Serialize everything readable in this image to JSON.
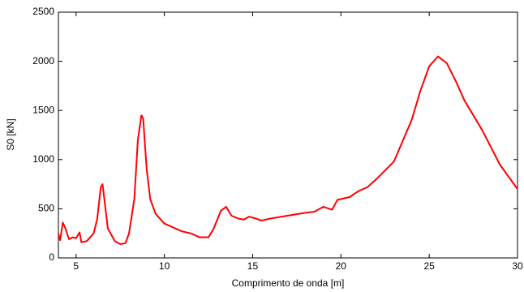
{
  "chart_data": {
    "type": "line",
    "x_label": "Comprimento de onda [m]",
    "y_label": "S0 [kN]",
    "x": [
      4.0,
      4.1,
      4.25,
      4.4,
      4.6,
      4.8,
      5.0,
      5.2,
      5.3,
      5.6,
      6.0,
      6.2,
      6.4,
      6.5,
      6.6,
      6.8,
      7.2,
      7.5,
      7.8,
      8.0,
      8.3,
      8.5,
      8.7,
      8.8,
      9.0,
      9.2,
      9.5,
      10.0,
      10.5,
      11.0,
      11.5,
      12.0,
      12.5,
      12.8,
      13.2,
      13.5,
      13.8,
      14.2,
      14.5,
      14.8,
      15.2,
      15.5,
      16.0,
      17.0,
      18.0,
      18.5,
      19.0,
      19.5,
      19.8,
      20.5,
      21.0,
      21.5,
      22.0,
      23.0,
      24.0,
      24.5,
      25.0,
      25.5,
      26.0,
      26.5,
      27.0,
      28.0,
      29.0,
      30.0
    ],
    "series": [
      {
        "color": "#ff0000",
        "values": [
          250,
          180,
          360,
          300,
          190,
          210,
          200,
          260,
          160,
          170,
          250,
          400,
          720,
          750,
          600,
          300,
          170,
          140,
          150,
          250,
          600,
          1200,
          1450,
          1420,
          900,
          600,
          450,
          350,
          310,
          270,
          250,
          210,
          210,
          300,
          480,
          520,
          430,
          400,
          390,
          420,
          400,
          380,
          400,
          430,
          460,
          470,
          520,
          490,
          590,
          620,
          680,
          720,
          800,
          980,
          1400,
          1700,
          1950,
          2050,
          1980,
          1800,
          1600,
          1300,
          950,
          700
        ]
      }
    ],
    "xlim": [
      4,
      30
    ],
    "xticks": [
      5,
      10,
      15,
      20,
      25,
      30
    ],
    "ylim": [
      0,
      2500
    ],
    "yticks": [
      0,
      500,
      1000,
      1500,
      2000,
      2500
    ]
  }
}
